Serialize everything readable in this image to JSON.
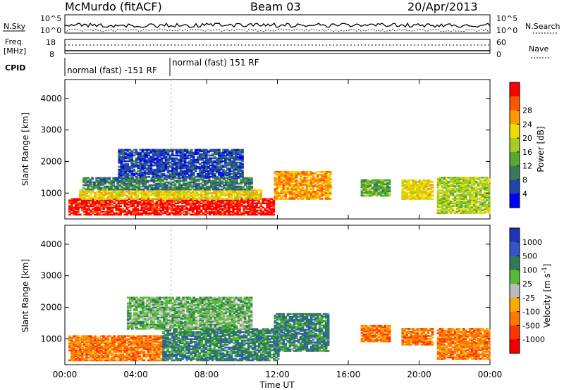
{
  "header": {
    "station": "McMurdo (fitACF)",
    "beam": "Beam 03",
    "date": "20/Apr/2013"
  },
  "status_panels": {
    "nsky_label": "N.Sky",
    "nsearch_label": "N.Search",
    "nsky_ticks": [
      "10^5",
      "10^0"
    ],
    "nsearch_ticks": [
      "10^5",
      "10^0"
    ],
    "freq_label": "Freq.",
    "freq_unit": "[MHz]",
    "freq_ticks": [
      "18",
      "8"
    ],
    "nave_label": "Nave",
    "nave_ticks": [
      "60",
      "0"
    ],
    "cpid_label": "CPID",
    "cpid_segments": [
      "normal (fast) -151 RF",
      "normal (fast) 151 RF"
    ]
  },
  "chart_data": [
    {
      "type": "heatmap",
      "name": "power",
      "ylabel": "Slant Range [km]",
      "xlabel": "Time UT",
      "x_ticks": [
        "00:00",
        "04:00",
        "08:00",
        "12:00",
        "16:00",
        "20:00",
        "00:00"
      ],
      "y_ticks": [
        "1000",
        "2000",
        "3000",
        "4000"
      ],
      "ylim": [
        180,
        4600
      ],
      "xlim_hours": [
        0,
        24
      ],
      "colorbar": {
        "label": "Power [dB]",
        "ticks": [
          "4",
          "8",
          "12",
          "16",
          "20",
          "24",
          "28"
        ],
        "colors": [
          "#0000ff",
          "#2244aa",
          "#3a7a55",
          "#55aa33",
          "#aacc22",
          "#eedd00",
          "#ff9900",
          "#ff5500",
          "#ff0000"
        ]
      },
      "regions": [
        {
          "t0": 0.2,
          "t1": 11.8,
          "r0": 300,
          "r1": 800,
          "level": 8
        },
        {
          "t0": 0.8,
          "t1": 11.0,
          "r0": 800,
          "r1": 1100,
          "level": 5
        },
        {
          "t0": 1.0,
          "t1": 10.5,
          "r0": 1100,
          "r1": 1500,
          "level": 2
        },
        {
          "t0": 3.0,
          "t1": 10.0,
          "r0": 1500,
          "r1": 2400,
          "level": 1
        },
        {
          "t0": 11.8,
          "t1": 15.0,
          "r0": 800,
          "r1": 1700,
          "level": 6
        },
        {
          "t0": 16.7,
          "t1": 18.3,
          "r0": 900,
          "r1": 1400,
          "level": 3
        },
        {
          "t0": 19.0,
          "t1": 20.8,
          "r0": 800,
          "r1": 1400,
          "level": 5
        },
        {
          "t0": 21.0,
          "t1": 24.0,
          "r0": 350,
          "r1": 1500,
          "level": 4
        }
      ]
    },
    {
      "type": "heatmap",
      "name": "velocity",
      "ylabel": "Slant Range [km]",
      "xlabel": "Time UT",
      "x_ticks": [
        "00:00",
        "04:00",
        "08:00",
        "12:00",
        "16:00",
        "20:00",
        "00:00"
      ],
      "y_ticks": [
        "1000",
        "2000",
        "3000",
        "4000"
      ],
      "ylim": [
        180,
        4600
      ],
      "xlim_hours": [
        0,
        24
      ],
      "colorbar": {
        "label": "Velocity [m s^-1]",
        "ticks": [
          "1000",
          "500",
          "100",
          "25",
          "-25",
          "-100",
          "-500",
          "-1000"
        ],
        "colors": [
          "#2233bb",
          "#3355cc",
          "#2e7b55",
          "#55bb33",
          "#bbbbbb",
          "#ffaa00",
          "#ff7700",
          "#ff3300",
          "#ee0000"
        ]
      },
      "regions": [
        {
          "t0": 0.2,
          "t1": 5.5,
          "r0": 300,
          "r1": 1100,
          "level": 6
        },
        {
          "t0": 5.5,
          "t1": 12.0,
          "r0": 300,
          "r1": 1300,
          "level": 2
        },
        {
          "t0": 3.5,
          "t1": 10.5,
          "r0": 1300,
          "r1": 2300,
          "level": 3
        },
        {
          "t0": 11.8,
          "t1": 14.8,
          "r0": 600,
          "r1": 1800,
          "level": 2
        },
        {
          "t0": 16.7,
          "t1": 18.3,
          "r0": 900,
          "r1": 1400,
          "level": 6
        },
        {
          "t0": 19.0,
          "t1": 20.8,
          "r0": 800,
          "r1": 1300,
          "level": 6
        },
        {
          "t0": 21.0,
          "t1": 24.0,
          "r0": 350,
          "r1": 1300,
          "level": 6
        }
      ]
    }
  ]
}
